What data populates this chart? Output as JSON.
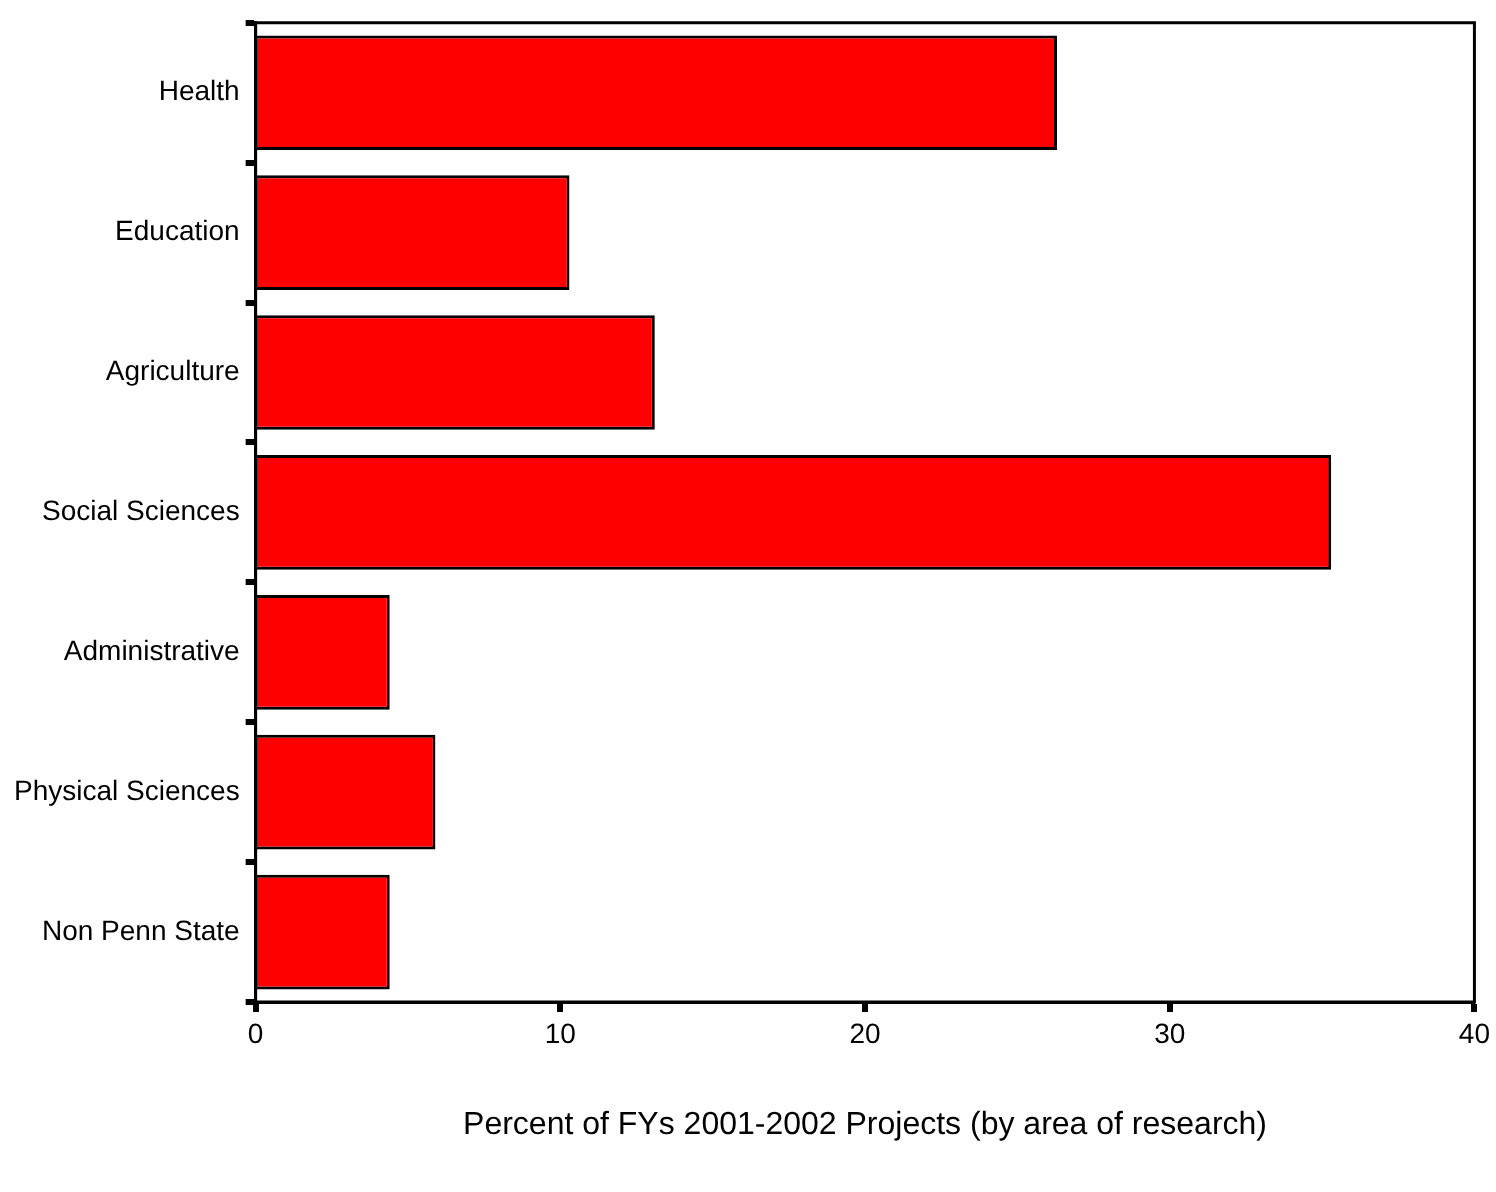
{
  "chart_data": {
    "type": "bar",
    "orientation": "horizontal",
    "xlabel": "Percent of FYs 2001-2002 Projects (by area of research)",
    "categories": [
      "Health",
      "Education",
      "Agriculture",
      "Social Sciences",
      "Administrative",
      "Physical Sciences",
      "Non Penn State"
    ],
    "values": [
      26.3,
      10.3,
      13.1,
      35.3,
      4.4,
      5.9,
      4.4
    ],
    "color": "#ff0000",
    "xlim": [
      0,
      40
    ],
    "xticks": [
      0,
      10,
      20,
      30,
      40
    ],
    "grid": false,
    "legend": false
  }
}
